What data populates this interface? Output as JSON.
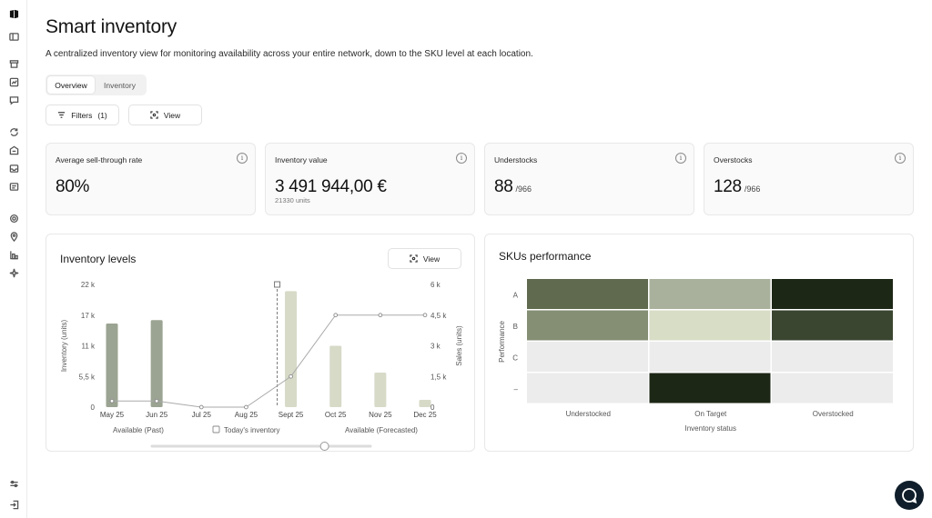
{
  "page": {
    "title": "Smart inventory",
    "subtitle": "A centralized inventory view for monitoring availability across your entire network, down to the SKU level at each location."
  },
  "tabs": [
    {
      "label": "Overview",
      "active": true
    },
    {
      "label": "Inventory",
      "active": false
    }
  ],
  "toolbar": {
    "filters_label": "Filters",
    "filters_count": "(1)",
    "view_label": "View"
  },
  "kpis": [
    {
      "label": "Average sell-through rate",
      "value": "80%",
      "suffix": "",
      "sub": ""
    },
    {
      "label": "Inventory value",
      "value": "3 491 944,00 €",
      "suffix": "",
      "sub": "21330 units"
    },
    {
      "label": "Understocks",
      "value": "88",
      "suffix": "/966",
      "sub": ""
    },
    {
      "label": "Overstocks",
      "value": "128",
      "suffix": "/966",
      "sub": ""
    }
  ],
  "inventory_levels": {
    "title": "Inventory levels",
    "view_label": "View",
    "legend": {
      "past": "Available (Past)",
      "today": "Today's inventory",
      "forecast": "Available (Forecasted)"
    },
    "slider_position": 0.79
  },
  "skus_performance": {
    "title": "SKUs performance"
  },
  "colors": {
    "bar_past": "#9ba492",
    "bar_forecast": "#d6dac7",
    "line": "#aaaaaa",
    "heat_scale": [
      "#ececec",
      "#d8ddc6",
      "#a9b19c",
      "#858f74",
      "#5f6a4e",
      "#3a4630",
      "#1d2716"
    ],
    "chat_bubble": "#0f1e2a"
  },
  "chart_data": [
    {
      "type": "bar",
      "title": "Inventory levels",
      "categories": [
        "May 25",
        "Jun 25",
        "Jul 25",
        "Aug 25",
        "Sept 25",
        "Oct 25",
        "Nov 25",
        "Dec 25"
      ],
      "series": [
        {
          "name": "Available (Past)",
          "axis": "left",
          "values": [
            15000,
            15600,
            0,
            0,
            null,
            null,
            null,
            null
          ]
        },
        {
          "name": "Available (Forecasted)",
          "axis": "left",
          "values": [
            null,
            null,
            null,
            null,
            20800,
            11000,
            6200,
            1300
          ]
        },
        {
          "type": "line",
          "axis": "right",
          "values": [
            0.3,
            0.3,
            0,
            0,
            1.5,
            4.5,
            4.5,
            4.5
          ]
        }
      ],
      "today_marker": "Sept 25",
      "ylabel": "Inventory (units)",
      "ylabel_right": "Sales (units)",
      "ylim": [
        0,
        22000
      ],
      "ylim_right": [
        0,
        6
      ],
      "y_ticks": [
        "0",
        "5,5 k",
        "11 k",
        "17 k",
        "22 k"
      ],
      "y_right_ticks": [
        "0",
        "1,5 k",
        "3 k",
        "4,5 k",
        "6 k"
      ],
      "grid": false
    },
    {
      "type": "heatmap",
      "title": "SKUs performance",
      "x_categories": [
        "Understocked",
        "On Target",
        "Overstocked"
      ],
      "y_categories": [
        "A",
        "B",
        "C",
        "–"
      ],
      "xlabel": "Inventory status",
      "ylabel": "Performance",
      "values": [
        [
          4,
          2,
          6
        ],
        [
          3,
          1,
          5
        ],
        [
          0,
          0,
          0
        ],
        [
          0,
          6,
          0
        ]
      ]
    }
  ]
}
